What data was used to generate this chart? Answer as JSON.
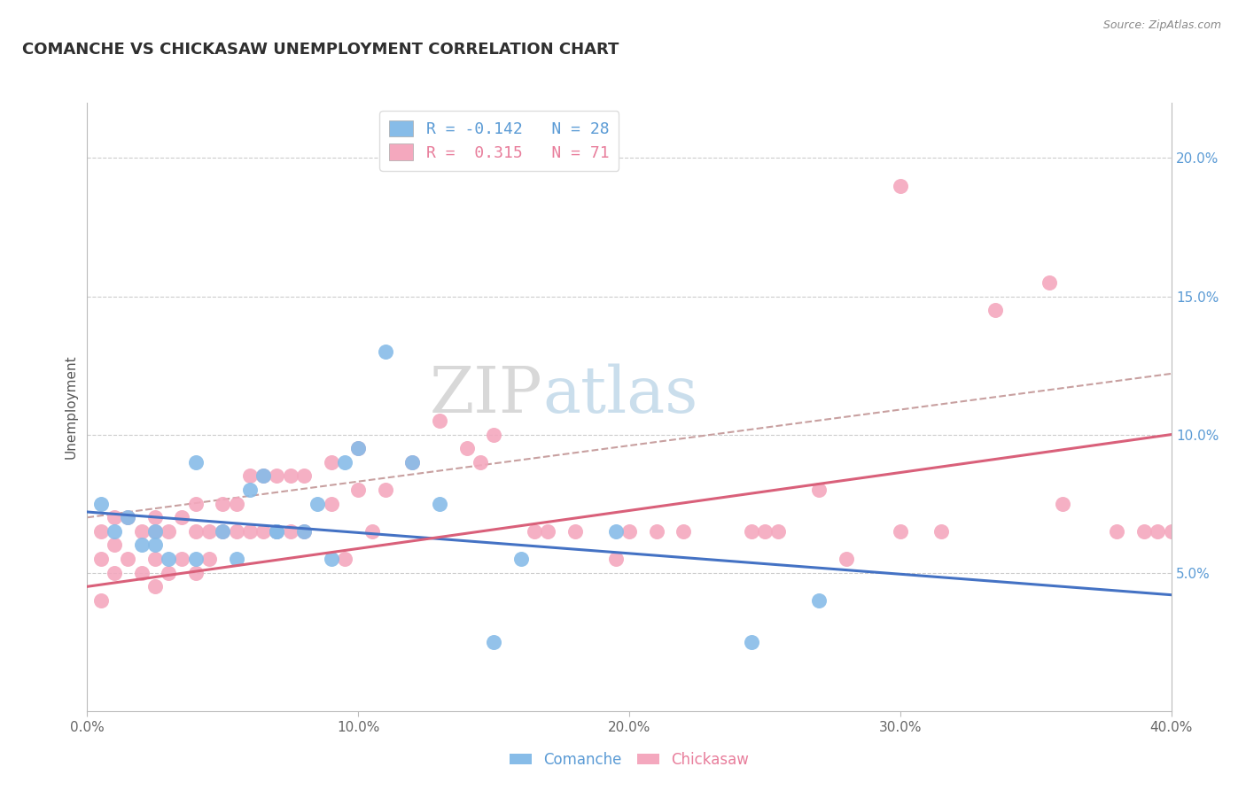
{
  "title": "COMANCHE VS CHICKASAW UNEMPLOYMENT CORRELATION CHART",
  "source": "Source: ZipAtlas.com",
  "ylabel": "Unemployment",
  "xlim": [
    0.0,
    0.4
  ],
  "ylim": [
    0.0,
    0.22
  ],
  "xticks": [
    0.0,
    0.1,
    0.2,
    0.3,
    0.4
  ],
  "xtick_labels": [
    "0.0%",
    "10.0%",
    "20.0%",
    "30.0%",
    "40.0%"
  ],
  "yticks_right": [
    0.05,
    0.1,
    0.15,
    0.2
  ],
  "ytick_labels_right": [
    "5.0%",
    "10.0%",
    "15.0%",
    "20.0%"
  ],
  "comanche_color": "#87BCE8",
  "chickasaw_color": "#F4A8BE",
  "comanche_line_color": "#4472C4",
  "chickasaw_line_color": "#D9607A",
  "dashed_line_color": "#C8A0A0",
  "comanche_R": -0.142,
  "comanche_N": 28,
  "chickasaw_R": 0.315,
  "chickasaw_N": 71,
  "watermark_zip": "ZIP",
  "watermark_atlas": "atlas",
  "comanche_x": [
    0.005,
    0.01,
    0.015,
    0.02,
    0.025,
    0.025,
    0.03,
    0.04,
    0.04,
    0.05,
    0.055,
    0.06,
    0.065,
    0.07,
    0.07,
    0.08,
    0.085,
    0.09,
    0.095,
    0.1,
    0.11,
    0.12,
    0.13,
    0.15,
    0.16,
    0.195,
    0.245,
    0.27
  ],
  "comanche_y": [
    0.075,
    0.065,
    0.07,
    0.06,
    0.065,
    0.06,
    0.055,
    0.055,
    0.09,
    0.065,
    0.055,
    0.08,
    0.085,
    0.065,
    0.065,
    0.065,
    0.075,
    0.055,
    0.09,
    0.095,
    0.13,
    0.09,
    0.075,
    0.025,
    0.055,
    0.065,
    0.025,
    0.04
  ],
  "chickasaw_x": [
    0.005,
    0.005,
    0.005,
    0.01,
    0.01,
    0.01,
    0.015,
    0.015,
    0.02,
    0.02,
    0.025,
    0.025,
    0.025,
    0.025,
    0.03,
    0.03,
    0.035,
    0.035,
    0.04,
    0.04,
    0.04,
    0.045,
    0.045,
    0.05,
    0.05,
    0.055,
    0.055,
    0.06,
    0.06,
    0.065,
    0.065,
    0.07,
    0.07,
    0.075,
    0.075,
    0.08,
    0.08,
    0.09,
    0.09,
    0.095,
    0.1,
    0.1,
    0.105,
    0.11,
    0.12,
    0.13,
    0.14,
    0.145,
    0.15,
    0.165,
    0.17,
    0.18,
    0.195,
    0.2,
    0.21,
    0.22,
    0.245,
    0.25,
    0.255,
    0.27,
    0.28,
    0.3,
    0.3,
    0.315,
    0.335,
    0.355,
    0.36,
    0.38,
    0.39,
    0.395,
    0.4
  ],
  "chickasaw_y": [
    0.065,
    0.055,
    0.04,
    0.07,
    0.06,
    0.05,
    0.07,
    0.055,
    0.065,
    0.05,
    0.07,
    0.065,
    0.055,
    0.045,
    0.065,
    0.05,
    0.07,
    0.055,
    0.075,
    0.065,
    0.05,
    0.065,
    0.055,
    0.075,
    0.065,
    0.075,
    0.065,
    0.085,
    0.065,
    0.085,
    0.065,
    0.085,
    0.065,
    0.085,
    0.065,
    0.085,
    0.065,
    0.09,
    0.075,
    0.055,
    0.095,
    0.08,
    0.065,
    0.08,
    0.09,
    0.105,
    0.095,
    0.09,
    0.1,
    0.065,
    0.065,
    0.065,
    0.055,
    0.065,
    0.065,
    0.065,
    0.065,
    0.065,
    0.065,
    0.08,
    0.055,
    0.065,
    0.19,
    0.065,
    0.145,
    0.155,
    0.075,
    0.065,
    0.065,
    0.065,
    0.065
  ]
}
